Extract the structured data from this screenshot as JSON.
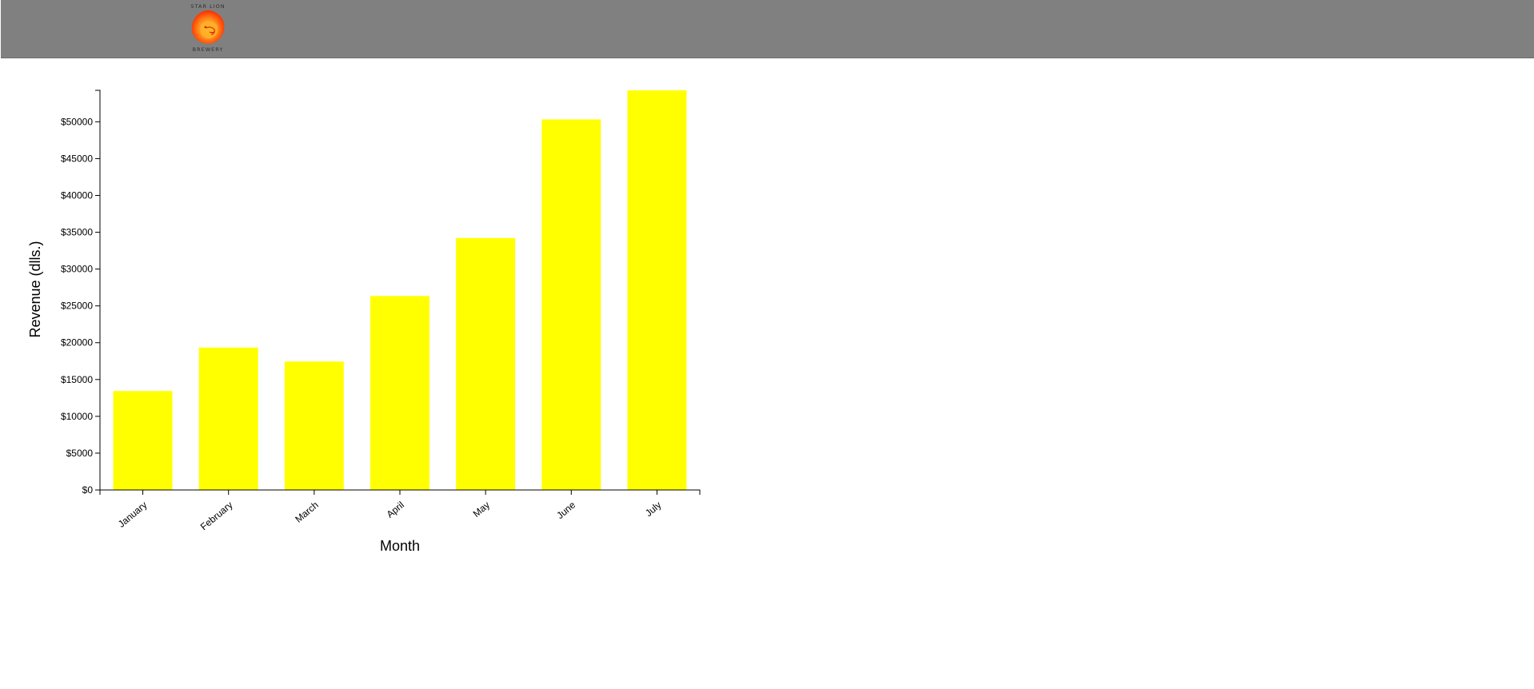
{
  "header": {
    "logo_top": "STAR LION",
    "logo_bottom": "BREWERY",
    "background": "#808080"
  },
  "chart_data": {
    "type": "bar",
    "categories": [
      "January",
      "February",
      "March",
      "April",
      "May",
      "June",
      "July"
    ],
    "values": [
      13432,
      19342,
      17443,
      26342,
      34213,
      50321,
      54273
    ],
    "title": "",
    "xlabel": "Month",
    "ylabel": "Revenue (dlls.)",
    "ylim": [
      0,
      54273
    ],
    "yticks": [
      0,
      5000,
      10000,
      15000,
      20000,
      25000,
      30000,
      35000,
      40000,
      45000,
      50000
    ],
    "ytick_labels": [
      "$0",
      "$5000",
      "$10000",
      "$15000",
      "$20000",
      "$25000",
      "$30000",
      "$35000",
      "$40000",
      "$45000",
      "$50000"
    ],
    "bar_color": "#ffff00",
    "grid": false,
    "legend": "none"
  }
}
